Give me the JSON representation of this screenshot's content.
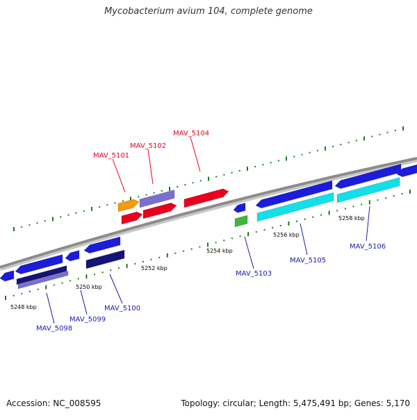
{
  "title": "Mycobacterium avium 104, complete genome",
  "footer": {
    "accession": "Accession: NC_008595",
    "summary": "Topology: circular; Length: 5,475,491 bp; Genes: 5,170"
  },
  "colors": {
    "background": "#ffffff",
    "backbone": "#8c8c8c",
    "tick": "#1a7a1a",
    "label_forward": "#e8001c",
    "label_reverse": "#1a1aa8"
  },
  "scale_labels": [
    "5248 kbp",
    "5250 kbp",
    "5252 kbp",
    "5254 kbp",
    "5256 kbp",
    "5258 kbp"
  ],
  "gene_labels": [
    {
      "text": "MAV_5101",
      "strand": "forward"
    },
    {
      "text": "MAV_5102",
      "strand": "forward"
    },
    {
      "text": "MAV_5104",
      "strand": "forward"
    },
    {
      "text": "MAV_5103",
      "strand": "reverse"
    },
    {
      "text": "MAV_5105",
      "strand": "reverse"
    },
    {
      "text": "MAV_5106",
      "strand": "reverse"
    },
    {
      "text": "MAV_5098",
      "strand": "reverse"
    },
    {
      "text": "MAV_5099",
      "strand": "reverse"
    },
    {
      "text": "MAV_5100",
      "strand": "reverse"
    }
  ]
}
